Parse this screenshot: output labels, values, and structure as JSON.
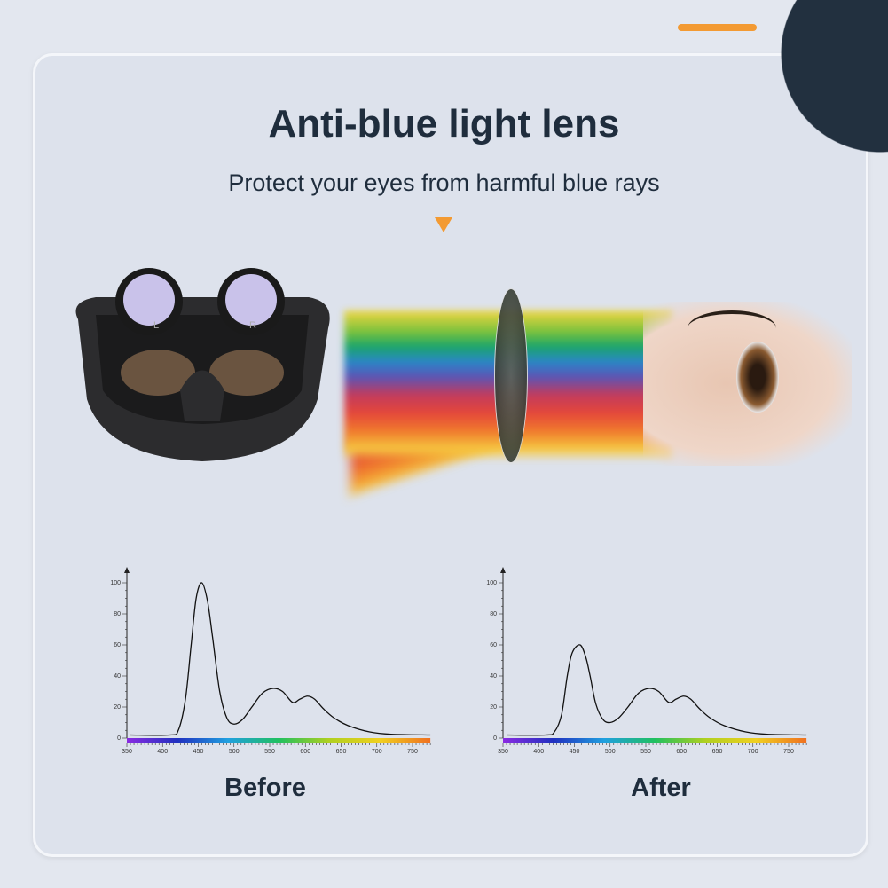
{
  "header": {
    "title": "Anti-blue light lens",
    "subtitle": "Protect your eyes from harmful blue rays"
  },
  "headset": {
    "left_lens_label": "L",
    "right_lens_label": "R"
  },
  "colors": {
    "accent": "#f39a32",
    "dark": "#22303f",
    "text": "#1f2d3d"
  },
  "chart_data": [
    {
      "type": "line",
      "title": "",
      "caption": "Before",
      "xlim": [
        350,
        775
      ],
      "ylim": [
        0,
        100
      ],
      "xticks": [
        350,
        400,
        450,
        500,
        550,
        600,
        650,
        700,
        750
      ],
      "yticks": [
        0,
        20,
        40,
        60,
        80,
        100
      ],
      "x": [
        355,
        410,
        422,
        432,
        440,
        447,
        455,
        463,
        470,
        480,
        490,
        500,
        512,
        525,
        540,
        555,
        568,
        582,
        592,
        603,
        613,
        625,
        640,
        660,
        690,
        720,
        775
      ],
      "y": [
        2,
        2,
        5,
        25,
        60,
        90,
        100,
        88,
        65,
        30,
        13,
        9,
        12,
        20,
        29,
        32,
        30,
        23,
        25,
        27,
        25,
        19,
        13,
        8,
        4,
        2.5,
        2
      ]
    },
    {
      "type": "line",
      "title": "",
      "caption": "After",
      "xlim": [
        350,
        775
      ],
      "ylim": [
        0,
        100
      ],
      "xticks": [
        350,
        400,
        450,
        500,
        550,
        600,
        650,
        700,
        750
      ],
      "yticks": [
        0,
        20,
        40,
        60,
        80,
        100
      ],
      "x": [
        355,
        410,
        422,
        432,
        440,
        447,
        458,
        466,
        472,
        480,
        490,
        500,
        512,
        525,
        540,
        555,
        568,
        582,
        592,
        603,
        613,
        625,
        640,
        660,
        690,
        720,
        775
      ],
      "y": [
        2,
        2,
        4,
        15,
        40,
        55,
        60,
        52,
        40,
        22,
        12,
        10,
        13,
        20,
        29,
        32,
        30,
        23,
        25,
        27,
        25,
        19,
        13,
        8,
        4,
        2.5,
        2
      ]
    }
  ]
}
